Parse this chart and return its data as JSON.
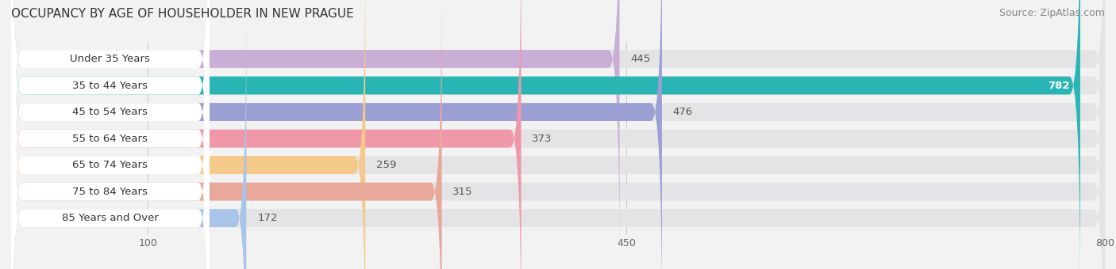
{
  "title": "OCCUPANCY BY AGE OF HOUSEHOLDER IN NEW PRAGUE",
  "source": "Source: ZipAtlas.com",
  "categories": [
    "Under 35 Years",
    "35 to 44 Years",
    "45 to 54 Years",
    "55 to 64 Years",
    "65 to 74 Years",
    "75 to 84 Years",
    "85 Years and Over"
  ],
  "values": [
    445,
    782,
    476,
    373,
    259,
    315,
    172
  ],
  "bar_colors": [
    "#c9aed6",
    "#2ab5b5",
    "#9b9fd4",
    "#f097aa",
    "#f5c98a",
    "#e8a89a",
    "#a8c4e8"
  ],
  "max_value": 800,
  "xticks": [
    100,
    450,
    800
  ],
  "background_color": "#f2f2f2",
  "bar_bg_color": "#e4e4e6",
  "value_label_color_inside": "#ffffff",
  "value_label_color_outside": "#555555",
  "label_fontsize": 9.5,
  "title_fontsize": 11,
  "source_fontsize": 9,
  "white_label_threshold": 750
}
